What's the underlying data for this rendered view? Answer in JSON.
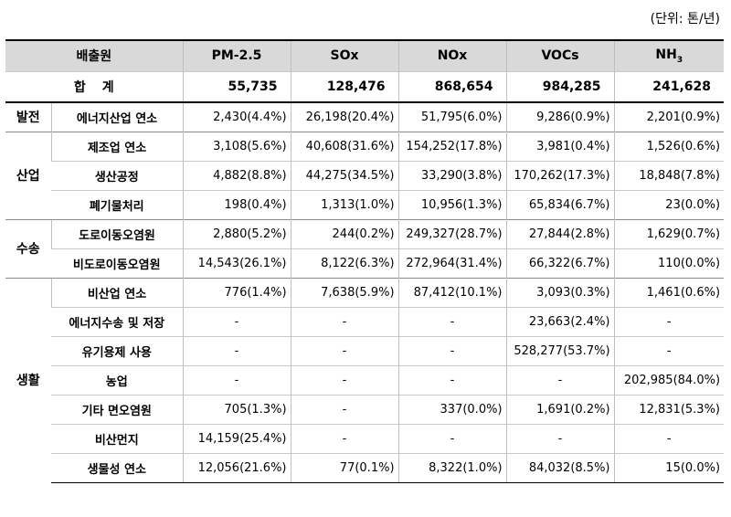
{
  "unit_label": "(단위: 톤/년)",
  "header": {
    "source": "배출원",
    "columns": [
      "PM-2.5",
      "SOx",
      "NOx",
      "VOCs",
      "NH3"
    ]
  },
  "total": {
    "label": "합계",
    "values": [
      "55,735",
      "128,476",
      "868,654",
      "984,285",
      "241,628"
    ]
  },
  "rows": [
    {
      "category": "발전",
      "source": "에너지산업 연소",
      "values": [
        "2,430(4.4%)",
        "26,198(20.4%)",
        "51,795(6.0%)",
        "9,286(0.9%)",
        "2,201(0.9%)"
      ]
    },
    {
      "category": "산업",
      "source": "제조업 연소",
      "values": [
        "3,108(5.6%)",
        "40,608(31.6%)",
        "154,252(17.8%)",
        "3,981(0.4%)",
        "1,526(0.6%)"
      ]
    },
    {
      "category": "",
      "source": "생산공정",
      "values": [
        "4,882(8.8%)",
        "44,275(34.5%)",
        "33,290(3.8%)",
        "170,262(17.3%)",
        "18,848(7.8%)"
      ]
    },
    {
      "category": "",
      "source": "폐기물처리",
      "values": [
        "198(0.4%)",
        "1,313(1.0%)",
        "10,956(1.3%)",
        "65,834(6.7%)",
        "23(0.0%)"
      ]
    },
    {
      "category": "수송",
      "source": "도로이동오염원",
      "values": [
        "2,880(5.2%)",
        "244(0.2%)",
        "249,327(28.7%)",
        "27,844(2.8%)",
        "1,629(0.7%)"
      ]
    },
    {
      "category": "",
      "source": "비도로이동오염원",
      "values": [
        "14,543(26.1%)",
        "8,122(6.3%)",
        "272,964(31.4%)",
        "66,322(6.7%)",
        "110(0.0%)"
      ]
    },
    {
      "category": "생활",
      "source": "비산업 연소",
      "values": [
        "776(1.4%)",
        "7,638(5.9%)",
        "87,412(10.1%)",
        "3,093(0.3%)",
        "1,461(0.6%)"
      ]
    },
    {
      "category": "",
      "source": "에너지수송 및 저장",
      "values": [
        "-",
        "-",
        "-",
        "23,663(2.4%)",
        "-"
      ]
    },
    {
      "category": "",
      "source": "유기용제 사용",
      "values": [
        "-",
        "-",
        "-",
        "528,277(53.7%)",
        "-"
      ]
    },
    {
      "category": "",
      "source": "농업",
      "values": [
        "-",
        "-",
        "-",
        "-",
        "202,985(84.0%)"
      ]
    },
    {
      "category": "",
      "source": "기타 면오염원",
      "values": [
        "705(1.3%)",
        "-",
        "337(0.0%)",
        "1,691(0.2%)",
        "12,831(5.3%)"
      ]
    },
    {
      "category": "",
      "source": "비산먼지",
      "values": [
        "14,159(25.4%)",
        "-",
        "-",
        "-",
        "-"
      ]
    },
    {
      "category": "",
      "source": "생물성 연소",
      "values": [
        "12,056(21.6%)",
        "77(0.1%)",
        "8,322(1.0%)",
        "84,032(8.5%)",
        "15(0.0%)"
      ]
    }
  ]
}
